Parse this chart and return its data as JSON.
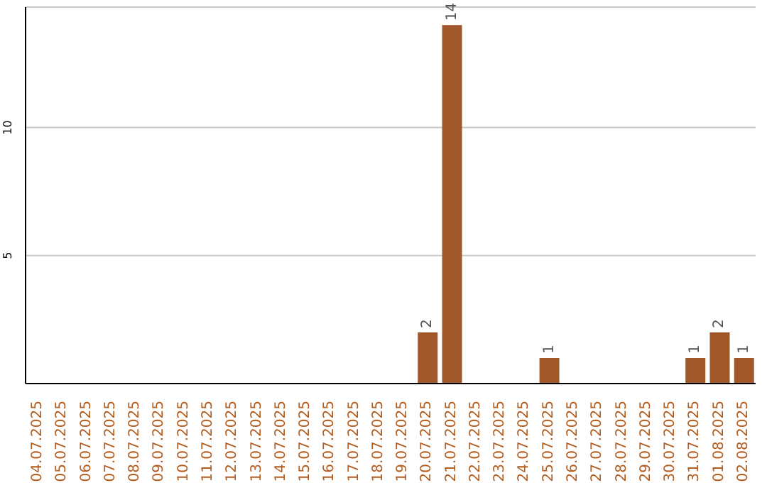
{
  "chart_data": {
    "type": "bar",
    "categories": [
      "04.07.2025",
      "05.07.2025",
      "06.07.2025",
      "07.07.2025",
      "08.07.2025",
      "09.07.2025",
      "10.07.2025",
      "11.07.2025",
      "12.07.2025",
      "13.07.2025",
      "14.07.2025",
      "15.07.2025",
      "16.07.2025",
      "17.07.2025",
      "18.07.2025",
      "19.07.2025",
      "20.07.2025",
      "21.07.2025",
      "22.07.2025",
      "23.07.2025",
      "24.07.2025",
      "25.07.2025",
      "26.07.2025",
      "27.07.2025",
      "28.07.2025",
      "29.07.2025",
      "30.07.2025",
      "31.07.2025",
      "01.08.2025",
      "02.08.2025"
    ],
    "values": [
      0,
      0,
      0,
      0,
      0,
      0,
      0,
      0,
      0,
      0,
      0,
      0,
      0,
      0,
      0,
      0,
      2,
      14,
      0,
      0,
      0,
      1,
      0,
      0,
      0,
      0,
      0,
      1,
      2,
      1
    ],
    "value_labels": [
      null,
      null,
      null,
      null,
      null,
      null,
      null,
      null,
      null,
      null,
      null,
      null,
      null,
      null,
      null,
      null,
      "2",
      "14",
      null,
      null,
      null,
      "1",
      null,
      null,
      null,
      null,
      null,
      "1",
      "2",
      "1"
    ],
    "color": "#a0582a",
    "ylim": [
      0,
      14.7
    ],
    "yticks": [
      5,
      10
    ],
    "grid": "y"
  }
}
